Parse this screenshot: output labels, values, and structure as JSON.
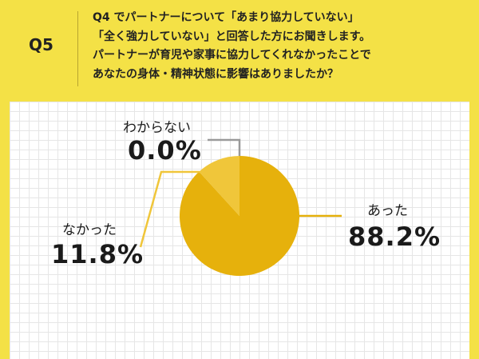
{
  "header": {
    "question_number": "Q5",
    "lines": [
      "Q4 でパートナーについて「あまり協力していない」",
      "「全く強力していない」と回答した方にお聞きします。",
      "パートナーが育児や家事に協力してくれなかったことで",
      "あなたの身体・精神状態に影響はありましたか？"
    ]
  },
  "colors": {
    "background": "#f4e146",
    "slice_yes": "#e6b10c",
    "slice_no": "#f0c63a",
    "slice_unknown": "#9a9a9a"
  },
  "chart_data": {
    "type": "pie",
    "slices": [
      {
        "name": "あった",
        "value": 88.2,
        "label": "88.2%"
      },
      {
        "name": "なかった",
        "value": 11.8,
        "label": "11.8%"
      },
      {
        "name": "わからない",
        "value": 0.0,
        "label": "0.0%"
      }
    ],
    "start": "top",
    "direction": "clockwise"
  }
}
